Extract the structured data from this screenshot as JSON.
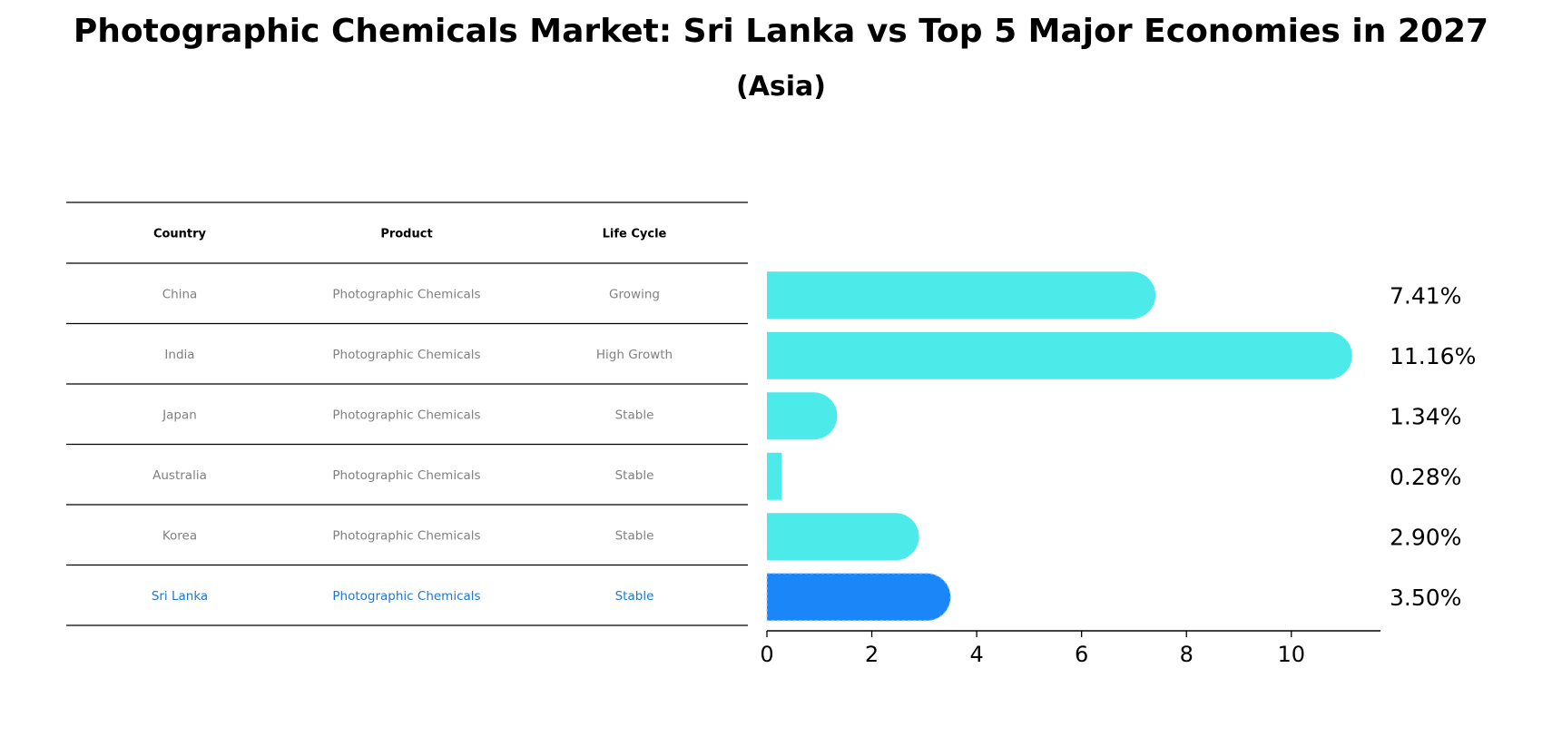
{
  "title": "Photographic Chemicals Market: Sri Lanka vs Top 5 Major Economies in 2027",
  "subtitle": "(Asia)",
  "colors": {
    "bar": "#4DEAEA",
    "highlight": "#1A86F7",
    "muted_text": "#808080",
    "highlight_text": "#1F77D4",
    "header_text": "#000000"
  },
  "table": {
    "headers": [
      "Country",
      "Product",
      "Life Cycle"
    ],
    "rows": [
      {
        "country": "China",
        "product": "Photographic Chemicals",
        "life_cycle": "Growing"
      },
      {
        "country": "India",
        "product": "Photographic Chemicals",
        "life_cycle": "High Growth"
      },
      {
        "country": "Japan",
        "product": "Photographic Chemicals",
        "life_cycle": "Stable"
      },
      {
        "country": "Australia",
        "product": "Photographic Chemicals",
        "life_cycle": "Stable"
      },
      {
        "country": "Korea",
        "product": "Photographic Chemicals",
        "life_cycle": "Stable"
      },
      {
        "country": "Sri Lanka",
        "product": "Photographic Chemicals",
        "life_cycle": "Stable",
        "highlight": true
      }
    ]
  },
  "chart_data": {
    "type": "bar",
    "orientation": "horizontal",
    "categories": [
      "China",
      "India",
      "Japan",
      "Australia",
      "Korea",
      "Sri Lanka"
    ],
    "values": [
      7.41,
      11.16,
      1.34,
      0.28,
      2.9,
      3.5
    ],
    "value_labels": [
      "7.41%",
      "11.16%",
      "1.34%",
      "0.28%",
      "2.90%",
      "3.50%"
    ],
    "highlight_category": "Sri Lanka",
    "xlim": [
      0,
      11.7
    ],
    "xticks": [
      0,
      2,
      4,
      6,
      8,
      10
    ],
    "xtick_labels": [
      "0",
      "2",
      "4",
      "6",
      "8",
      "10"
    ],
    "grid": false
  }
}
